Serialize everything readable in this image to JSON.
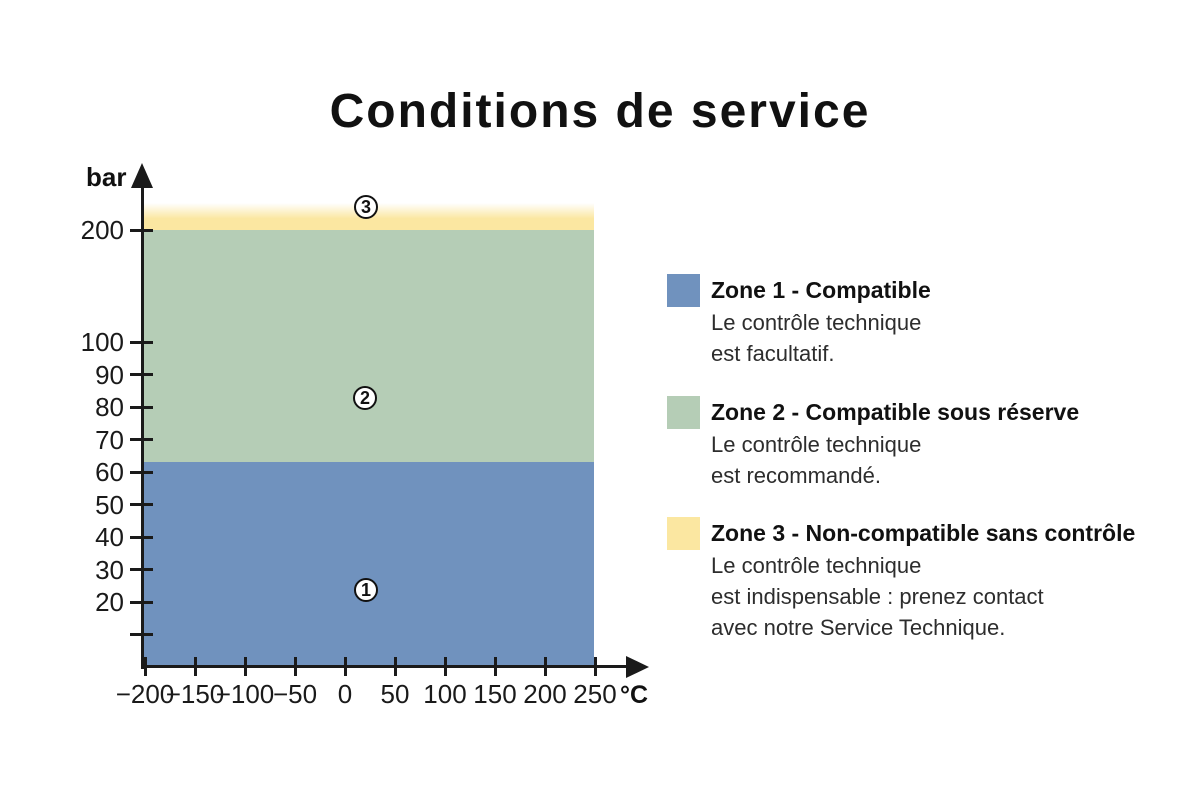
{
  "title": "Conditions de service",
  "chart_data": {
    "type": "area",
    "title": "Conditions de service",
    "xlabel": "°C",
    "ylabel": "bar",
    "x_range": [
      -200,
      250
    ],
    "x_ticks_c": [
      -200,
      -150,
      -100,
      -50,
      0,
      50,
      100,
      150,
      200,
      250
    ],
    "y_ticks_bar": [
      200,
      100,
      90,
      80,
      70,
      60,
      50,
      40,
      30,
      20
    ],
    "y_scale_note": "linear from 0 to 100 bar, compressed above 100 (200 bar tick near axis top)",
    "grid": false,
    "legend_position": "right",
    "zones": [
      {
        "marker": "1",
        "name": "Zone 1 - Compatible",
        "color": "#7092be",
        "temp_c": [
          -200,
          250
        ],
        "pressure_bar": [
          0,
          63
        ],
        "description": "Le contrôle technique est facultatif."
      },
      {
        "marker": "2",
        "name": "Zone 2 - Compatible sous réserve",
        "color": "#b5cdb6",
        "temp_c": [
          -200,
          250
        ],
        "pressure_bar": [
          63,
          200
        ],
        "description": "Le contrôle technique est recommandé."
      },
      {
        "marker": "3",
        "name": "Zone 3 - Non-compatible sans contrôle",
        "color": "#fbe7a1",
        "temp_c": [
          -200,
          250
        ],
        "pressure_bar": [
          200,
          null
        ],
        "description": "Le contrôle technique est indispensable : prenez contact avec notre Service Technique."
      }
    ]
  },
  "axes": {
    "y_unit": "bar",
    "x_unit": "°C",
    "y_ticks": [
      {
        "v": 200,
        "label": "200"
      },
      {
        "v": 100,
        "label": "100"
      },
      {
        "v": 90,
        "label": "90"
      },
      {
        "v": 80,
        "label": "80"
      },
      {
        "v": 70,
        "label": "70"
      },
      {
        "v": 60,
        "label": "60"
      },
      {
        "v": 50,
        "label": "50"
      },
      {
        "v": 40,
        "label": "40"
      },
      {
        "v": 30,
        "label": "30"
      },
      {
        "v": 20,
        "label": "20"
      },
      {
        "v": 10,
        "label": ""
      }
    ],
    "x_ticks": [
      {
        "v": -200,
        "label": "−200"
      },
      {
        "v": -150,
        "label": "−150"
      },
      {
        "v": -100,
        "label": "−100"
      },
      {
        "v": -50,
        "label": "−50"
      },
      {
        "v": 0,
        "label": "0"
      },
      {
        "v": 50,
        "label": "50"
      },
      {
        "v": 100,
        "label": "100"
      },
      {
        "v": 150,
        "label": "150"
      },
      {
        "v": 200,
        "label": "200"
      },
      {
        "v": 250,
        "label": "250"
      }
    ]
  },
  "legend": {
    "items": [
      {
        "marker": "1",
        "color": "#7092be",
        "title": "Zone 1 - Compatible",
        "lines": [
          "Le contrôle technique",
          "est facultatif."
        ]
      },
      {
        "marker": "2",
        "color": "#b5cdb6",
        "title": "Zone 2 - Compatible sous réserve",
        "lines": [
          "Le contrôle technique",
          "est recommandé."
        ]
      },
      {
        "marker": "3",
        "color": "#fbe7a1",
        "title": "Zone 3 - Non-compatible sans contrôle",
        "lines": [
          "Le contrôle technique",
          "est indispensable : prenez contact",
          "avec notre Service Technique."
        ]
      }
    ]
  },
  "colors": {
    "zone1_blue": "#7092be",
    "zone2_green": "#b5cdb6",
    "zone3_yellow": "#fbe7a1",
    "ink": "#1a1a1a",
    "background": "#ffffff"
  }
}
